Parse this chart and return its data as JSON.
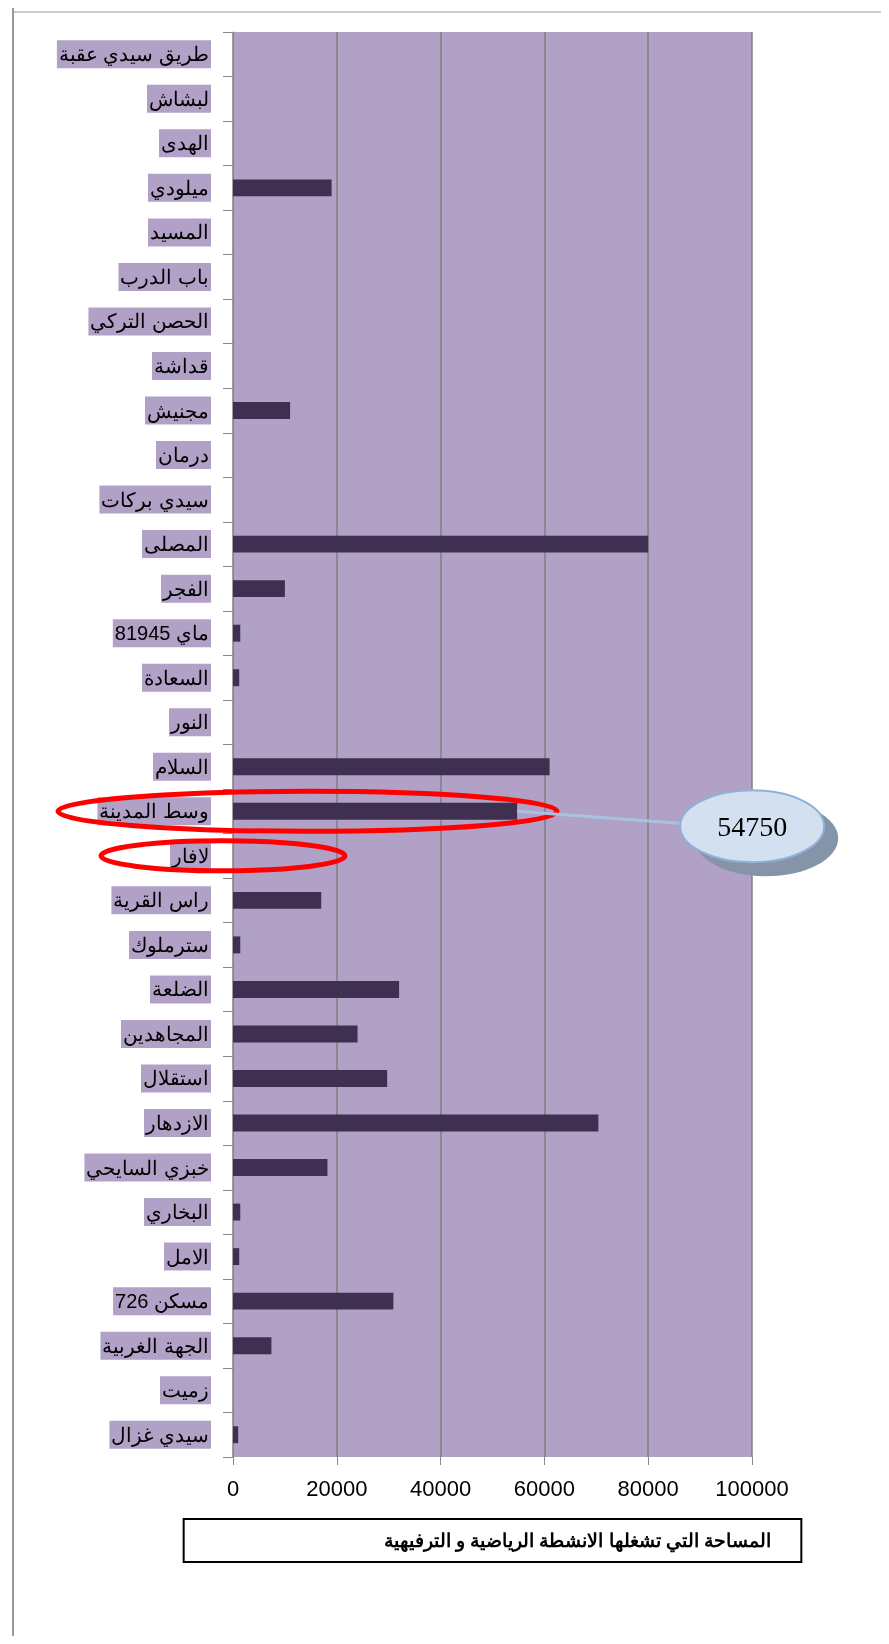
{
  "chart_data": {
    "type": "bar",
    "orientation": "horizontal",
    "xlabel": "المساحة التي تشغلها الانشطة الرياضية و الترفيهية",
    "categories": [
      "طريق سيدي عقبة",
      "لبشاش",
      "الهدى",
      "ميلودي",
      "المسيد",
      "باب الدرب",
      "الحصن التركي",
      "قداشة",
      "مجنيش",
      "درمان",
      "سيدي بركات",
      "المصلى",
      "الفجر",
      "8ماي 1945",
      "السعادة",
      "النور",
      "السلام",
      "وسط المدينة",
      "لافار",
      "راس القرية",
      "سترملوك",
      "الضلعة",
      "المجاهدين",
      "استقلال",
      "الازدهار",
      "خبزي السايحي",
      "البخاري",
      "الامل",
      "726 مسكن",
      "الجهة الغربية",
      "زميت",
      "سيدي غزال"
    ],
    "values": [
      0,
      0,
      0,
      19000,
      0,
      0,
      0,
      0,
      11000,
      0,
      0,
      80000,
      10000,
      1400,
      1200,
      0,
      61000,
      54750,
      0,
      17000,
      1400,
      32000,
      24000,
      29700,
      70400,
      18200,
      1400,
      1200,
      30900,
      7400,
      0,
      1000
    ],
    "color": "#3f2f50",
    "xlim": [
      0,
      100000
    ],
    "xticks": [
      0,
      20000,
      40000,
      60000,
      80000,
      100000
    ],
    "grid": "x",
    "annotations": [
      {
        "text": "54750",
        "x": 54750,
        "y": "وسط المدينة"
      }
    ]
  }
}
